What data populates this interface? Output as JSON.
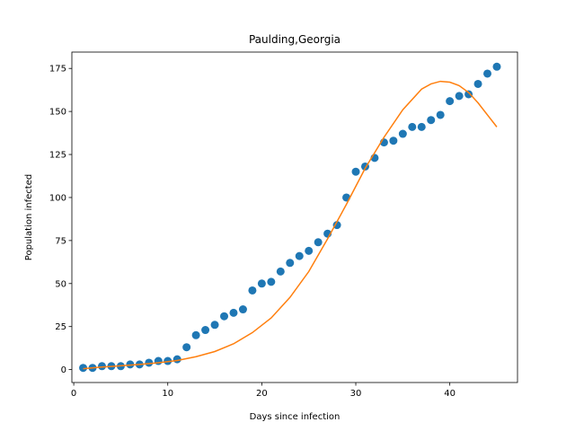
{
  "chart_data": {
    "type": "scatter",
    "title": "Paulding,Georgia",
    "xlabel": "Days since infection",
    "ylabel": "Population infected",
    "xlim": [
      -0.2,
      47.2
    ],
    "ylim": [
      -7.5,
      184.5
    ],
    "xticks": [
      0,
      10,
      20,
      30,
      40
    ],
    "yticks": [
      0,
      25,
      50,
      75,
      100,
      125,
      150,
      175
    ],
    "grid": false,
    "series": [
      {
        "kind": "points",
        "color": "#1f77b4",
        "x": [
          1,
          2,
          3,
          4,
          5,
          6,
          7,
          8,
          9,
          10,
          11,
          12,
          13,
          14,
          15,
          16,
          17,
          18,
          19,
          20,
          21,
          22,
          23,
          24,
          25,
          26,
          27,
          28,
          29,
          30,
          31,
          32,
          33,
          34,
          35,
          36,
          37,
          38,
          39,
          40,
          41,
          42,
          43,
          44,
          45
        ],
        "y": [
          1,
          1,
          2,
          2,
          2,
          3,
          3,
          4,
          5,
          5,
          6,
          13,
          20,
          23,
          26,
          31,
          33,
          35,
          46,
          50,
          51,
          57,
          62,
          66,
          69,
          74,
          79,
          84,
          100,
          115,
          118,
          123,
          132,
          133,
          137,
          141,
          141,
          145,
          148,
          156,
          159,
          160,
          166,
          172,
          176
        ]
      },
      {
        "kind": "line",
        "color": "#ff7f0e",
        "x": [
          1,
          3,
          5,
          7,
          9,
          11,
          13,
          15,
          17,
          19,
          21,
          23,
          25,
          27,
          29,
          31,
          33,
          35,
          37,
          38,
          39,
          40,
          41,
          42,
          43,
          44,
          45
        ],
        "y": [
          0.5,
          1.5,
          2.2,
          3.0,
          4.0,
          5.3,
          7.5,
          10.5,
          15.0,
          21.5,
          30.0,
          42.0,
          57.0,
          76.0,
          96.0,
          117.0,
          135.0,
          151.0,
          163.0,
          166.0,
          167.5,
          167.0,
          165.0,
          161.0,
          155.0,
          148.0,
          141.0
        ]
      }
    ]
  }
}
